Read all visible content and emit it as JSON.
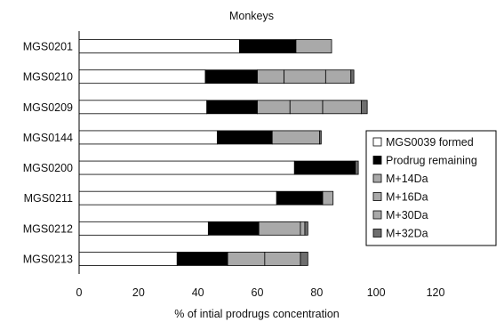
{
  "chart_data": {
    "type": "bar",
    "orientation": "horizontal",
    "stacked": true,
    "title": "Monkeys",
    "xlabel": "% of intial prodrugs concentration",
    "ylabel": "",
    "xlim": [
      0,
      120
    ],
    "x_ticks": [
      0,
      20,
      40,
      60,
      80,
      100,
      120
    ],
    "grid": false,
    "legend_position": "right",
    "categories": [
      "MGS0201",
      "MGS0210",
      "MGS0209",
      "MGS0144",
      "MGS0200",
      "MGS0211",
      "MGS0212",
      "MGS0213"
    ],
    "series": [
      {
        "name": "MGS0039 formed",
        "color": "#ffffff",
        "values": [
          54,
          42.5,
          43,
          46.5,
          72.5,
          66.5,
          43.5,
          33
        ]
      },
      {
        "name": "Prodrug remaining",
        "color": "#000000",
        "values": [
          19,
          17.5,
          17,
          18.5,
          20.5,
          15.5,
          17,
          17
        ]
      },
      {
        "name": "M+14Da",
        "color": "#a9a9a9",
        "values": [
          0,
          9,
          11,
          16,
          0,
          0,
          0,
          12.5
        ]
      },
      {
        "name": "M+16Da",
        "color": "#a9a9a9",
        "values": [
          12,
          14,
          11,
          0,
          0,
          3.5,
          14,
          12
        ]
      },
      {
        "name": "M+30Da",
        "color": "#a9a9a9",
        "values": [
          0,
          8.5,
          13,
          0,
          0,
          0,
          1.5,
          0
        ]
      },
      {
        "name": "M+32Da",
        "color": "#6e6e6e",
        "values": [
          0,
          1,
          2,
          0.5,
          1,
          0,
          1,
          2.5
        ]
      }
    ]
  }
}
